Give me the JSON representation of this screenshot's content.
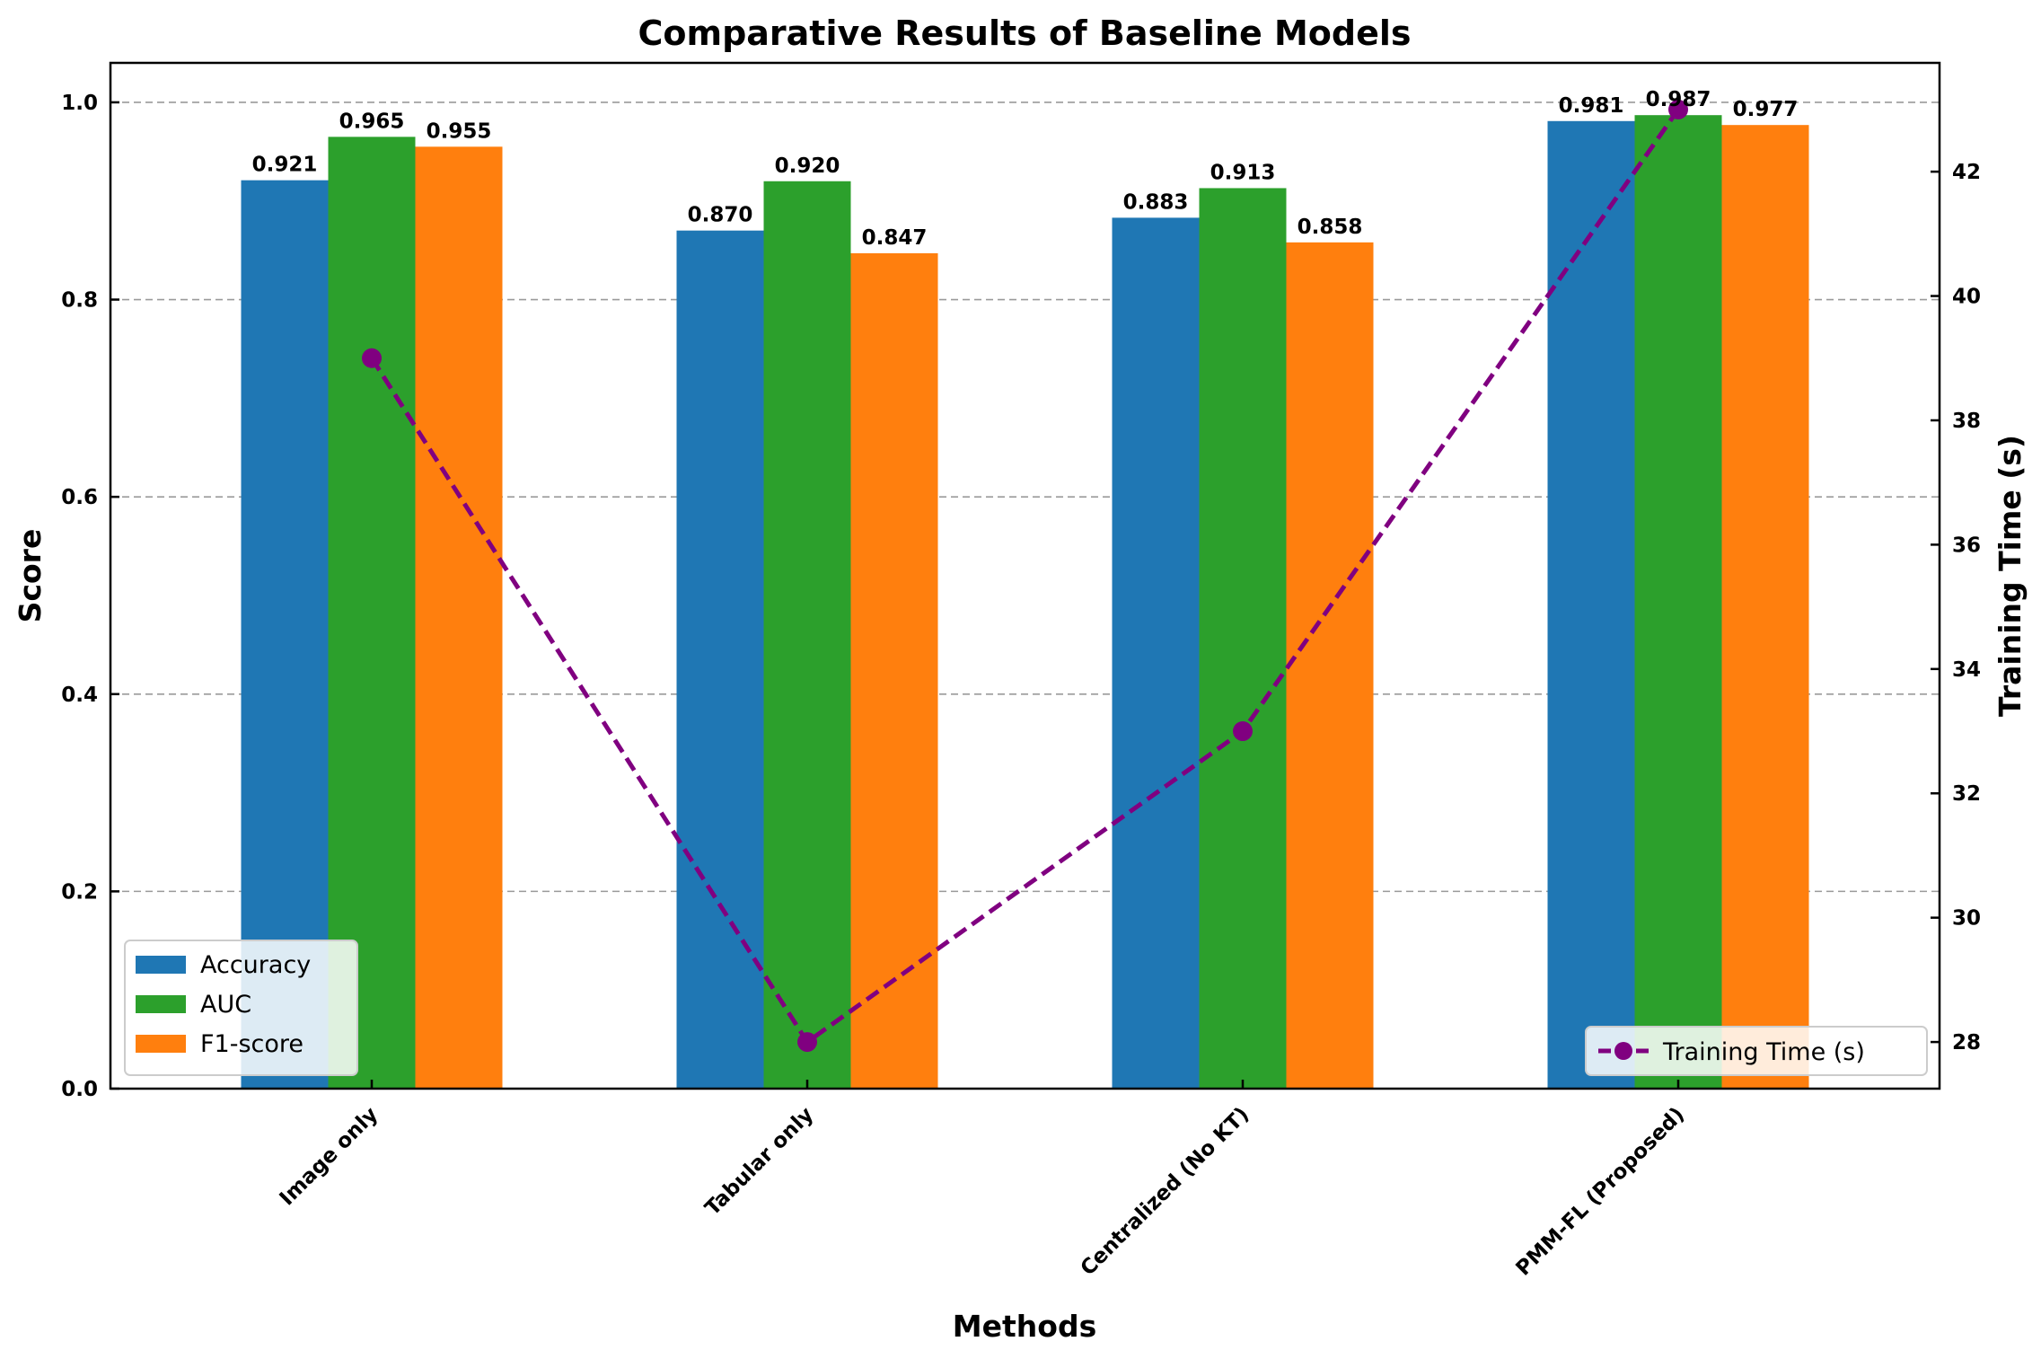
{
  "chart_data": {
    "type": "bar",
    "title": "Comparative Results of Baseline Models",
    "xlabel": "Methods",
    "ylabel": "Score",
    "y2label": "Training Time (s)",
    "categories": [
      "Image only",
      "Tabular only",
      "Centralized (No KT)",
      "PMM-FL (Proposed)"
    ],
    "ylim": [
      0,
      1.04
    ],
    "yticks": [
      0.0,
      0.2,
      0.4,
      0.6,
      0.8,
      1.0
    ],
    "ytick_labels": [
      "0.0",
      "0.2",
      "0.4",
      "0.6",
      "0.8",
      "1.0"
    ],
    "y2lim": [
      27.25,
      43.75
    ],
    "y2ticks": [
      28,
      30,
      32,
      34,
      36,
      38,
      40,
      42
    ],
    "y2tick_labels": [
      "28",
      "30",
      "32",
      "34",
      "36",
      "38",
      "40",
      "42"
    ],
    "grid": true,
    "series": [
      {
        "name": "Accuracy",
        "color": "#1f77b4",
        "values": [
          0.921,
          0.87,
          0.883,
          0.981
        ],
        "labels": [
          "0.921",
          "0.870",
          "0.883",
          "0.981"
        ]
      },
      {
        "name": "AUC",
        "color": "#2ca02c",
        "values": [
          0.965,
          0.92,
          0.913,
          0.987
        ],
        "labels": [
          "0.965",
          "0.920",
          "0.913",
          "0.987"
        ]
      },
      {
        "name": "F1-score",
        "color": "#ff7f0e",
        "values": [
          0.955,
          0.847,
          0.858,
          0.977
        ],
        "labels": [
          "0.955",
          "0.847",
          "0.858",
          "0.977"
        ]
      }
    ],
    "line_series": {
      "name": "Training Time (s)",
      "color": "#800080",
      "axis": "right",
      "style": "dashed",
      "marker": "circle",
      "values": [
        39,
        28,
        33,
        43
      ]
    },
    "legend_bars_position": "lower-left",
    "legend_line_position": "lower-right"
  }
}
